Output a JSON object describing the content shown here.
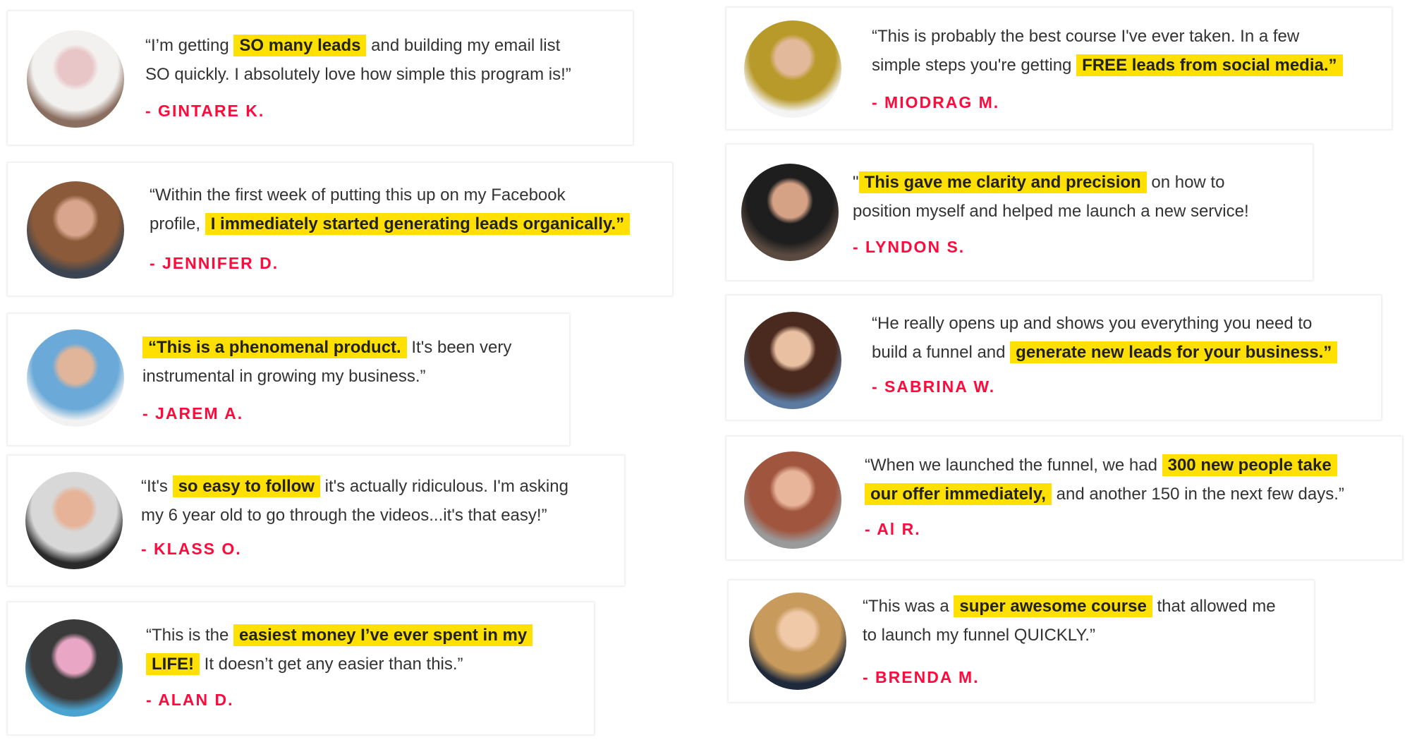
{
  "colors": {
    "highlight": "#ffe000",
    "name": "#ff0a3c",
    "text": "#333333"
  },
  "testimonials": [
    {
      "name": "- GINTARE K.",
      "avatar": [
        "#e8c6c8",
        "#f3f1ef",
        "#8a6e60"
      ],
      "lines": [
        [
          {
            "t": "“I’m getting "
          },
          {
            "t": "SO many leads",
            "hl": true
          },
          {
            "t": " and building my email list"
          }
        ],
        [
          {
            "t": "SO quickly. I absolutely love how simple this program is!”"
          }
        ]
      ]
    },
    {
      "name": "- JENNIFER D.",
      "avatar": [
        "#d9a58c",
        "#8a5a3a",
        "#3b4450"
      ],
      "lines": [
        [
          {
            "t": "“Within the first week of putting this up on my Facebook"
          }
        ],
        [
          {
            "t": "profile, "
          },
          {
            "t": "I immediately started generating leads organically.”",
            "hl": true
          }
        ]
      ]
    },
    {
      "name": "- JAREM A.",
      "avatar": [
        "#e0b59a",
        "#6aa9d8",
        "#f2f2f2"
      ],
      "lines": [
        [
          {
            "t": "“This is a phenomenal product.",
            "hl": true
          },
          {
            "t": " It's been very"
          }
        ],
        [
          {
            "t": " instrumental in growing my business.”"
          }
        ]
      ]
    },
    {
      "name": "- KLASS O.",
      "avatar": [
        "#e6b398",
        "#d8d8d8",
        "#2a2a2a"
      ],
      "lines": [
        [
          {
            "t": "“It's "
          },
          {
            "t": "so easy to follow",
            "hl": true
          },
          {
            "t": " it's actually ridiculous. I'm asking"
          }
        ],
        [
          {
            "t": "my 6 year old to go through the videos...it's that easy!”"
          }
        ]
      ]
    },
    {
      "name": "- ALAN D.",
      "avatar": [
        "#e9a7c5",
        "#3a3a3a",
        "#4aa3d0"
      ],
      "lines": [
        [
          {
            "t": "“This is the "
          },
          {
            "t": "easiest money I’ve ever spent in my",
            "hl": true
          }
        ],
        [
          {
            "t": "LIFE!",
            "hl": true
          },
          {
            "t": " It doesn’t get any easier than this.”"
          }
        ]
      ]
    },
    {
      "name": "- MIODRAG M.",
      "avatar": [
        "#e2b99b",
        "#b89a2a",
        "#f4f4f4"
      ],
      "lines": [
        [
          {
            "t": "“This is probably the best course I've ever taken. In a few"
          }
        ],
        [
          {
            "t": "simple steps you're getting "
          },
          {
            "t": "FREE leads from social media.”",
            "hl": true
          }
        ]
      ]
    },
    {
      "name": "- LYNDON S.",
      "avatar": [
        "#d6a286",
        "#1e1e1e",
        "#5a4a40"
      ],
      "lines": [
        [
          {
            "t": "\""
          },
          {
            "t": "This gave me clarity and precision",
            "hl": true
          },
          {
            "t": " on how to"
          }
        ],
        [
          {
            "t": "position myself and helped me launch a new service!"
          }
        ]
      ]
    },
    {
      "name": "- SABRINA W.",
      "avatar": [
        "#e9c0a2",
        "#4a2a1e",
        "#5c7aa0"
      ],
      "lines": [
        [
          {
            "t": "“He really opens up and shows you everything you need to"
          }
        ],
        [
          {
            "t": "build a funnel and "
          },
          {
            "t": "generate new leads for your business.”",
            "hl": true
          }
        ]
      ]
    },
    {
      "name": "- Al R.",
      "avatar": [
        "#e8b49a",
        "#a0553e",
        "#9a9a9a"
      ],
      "lines": [
        [
          {
            "t": "“When we launched the funnel, we had "
          },
          {
            "t": "300 new people take",
            "hl": true
          }
        ],
        [
          {
            "t": "our offer immediately,",
            "hl": true
          },
          {
            "t": " and another 150 in the next few days.”"
          }
        ]
      ]
    },
    {
      "name": "- BRENDA M.",
      "avatar": [
        "#f0c9a8",
        "#c89a5c",
        "#1e2a3c"
      ],
      "lines": [
        [
          {
            "t": "“This was a "
          },
          {
            "t": "super awesome course",
            "hl": true
          },
          {
            "t": " that allowed me"
          }
        ],
        [
          {
            "t": "to launch my funnel QUICKLY.”"
          }
        ]
      ]
    }
  ]
}
